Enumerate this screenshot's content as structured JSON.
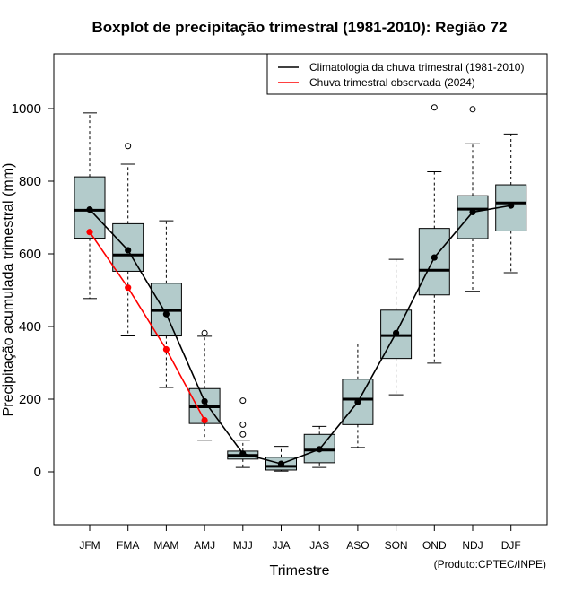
{
  "chart_data": {
    "type": "boxplot",
    "title": "Boxplot de precipitação trimestral (1981-2010): Região 72",
    "xlabel": "Trimestre",
    "ylabel": "Precipitação acumulada trimestral (mm)",
    "credit": "(Produto:CPTEC/INPE)",
    "ylim": [
      -150,
      1150
    ],
    "yticks": [
      0,
      200,
      400,
      600,
      800,
      1000
    ],
    "categories": [
      "JFM",
      "FMA",
      "MAM",
      "AMJ",
      "MJJ",
      "JJA",
      "JAS",
      "ASO",
      "SON",
      "OND",
      "NDJ",
      "DJF"
    ],
    "boxes": [
      {
        "label": "JFM",
        "whisker_low": 477,
        "q1": 643,
        "median": 720,
        "q3": 812,
        "whisker_high": 988,
        "outliers": []
      },
      {
        "label": "FMA",
        "whisker_low": 374,
        "q1": 552,
        "median": 597,
        "q3": 683,
        "whisker_high": 847,
        "outliers": [
          897
        ]
      },
      {
        "label": "MAM",
        "whisker_low": 232,
        "q1": 374,
        "median": 444,
        "q3": 519,
        "whisker_high": 691,
        "outliers": []
      },
      {
        "label": "AMJ",
        "whisker_low": 87,
        "q1": 133,
        "median": 179,
        "q3": 229,
        "whisker_high": 373,
        "outliers": [
          382
        ]
      },
      {
        "label": "MJJ",
        "whisker_low": 12,
        "q1": 35,
        "median": 45,
        "q3": 57,
        "whisker_high": 87,
        "outliers": [
          103,
          130,
          196
        ]
      },
      {
        "label": "JJA",
        "whisker_low": 2,
        "q1": 5,
        "median": 15,
        "q3": 40,
        "whisker_high": 70,
        "outliers": []
      },
      {
        "label": "JAS",
        "whisker_low": 12,
        "q1": 25,
        "median": 60,
        "q3": 103,
        "whisker_high": 125,
        "outliers": []
      },
      {
        "label": "ASO",
        "whisker_low": 67,
        "q1": 130,
        "median": 200,
        "q3": 255,
        "whisker_high": 352,
        "outliers": []
      },
      {
        "label": "SON",
        "whisker_low": 212,
        "q1": 312,
        "median": 375,
        "q3": 445,
        "whisker_high": 585,
        "outliers": []
      },
      {
        "label": "OND",
        "whisker_low": 299,
        "q1": 487,
        "median": 555,
        "q3": 670,
        "whisker_high": 826,
        "outliers": [
          1003
        ]
      },
      {
        "label": "NDJ",
        "whisker_low": 497,
        "q1": 642,
        "median": 723,
        "q3": 760,
        "whisker_high": 903,
        "outliers": [
          998
        ]
      },
      {
        "label": "DJF",
        "whisker_low": 548,
        "q1": 663,
        "median": 740,
        "q3": 790,
        "whisker_high": 930,
        "outliers": []
      }
    ],
    "series": [
      {
        "name": "Climatologia da chuva trimestral (1981-2010)",
        "color": "#000000",
        "values": [
          722,
          610,
          434,
          194,
          50,
          22,
          62,
          192,
          382,
          590,
          715,
          733
        ]
      },
      {
        "name": "Chuva trimestral observada (2024)",
        "color": "#ff0000",
        "values": [
          660,
          507,
          337,
          142
        ]
      }
    ],
    "box_fill": "#b3cbcb",
    "legend_position": "top-right"
  }
}
